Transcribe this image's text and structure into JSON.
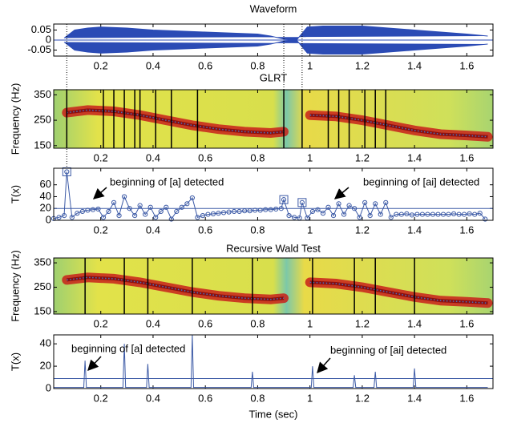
{
  "chart_data": [
    {
      "type": "waveform",
      "title": "Waveform",
      "color": "#2b4bb5",
      "x": [
        0.06,
        0.1,
        0.15,
        0.2,
        0.3,
        0.4,
        0.5,
        0.6,
        0.7,
        0.8,
        0.85,
        0.9,
        0.95,
        0.99,
        1.05,
        1.1,
        1.2,
        1.3,
        1.4,
        1.5,
        1.6,
        1.68
      ],
      "values": [
        0.01,
        0.05,
        0.06,
        0.065,
        0.06,
        0.05,
        0.045,
        0.04,
        0.035,
        0.03,
        0.02,
        0.005,
        0.002,
        0.065,
        0.07,
        0.07,
        0.07,
        0.06,
        0.05,
        0.04,
        0.03,
        0.02
      ],
      "markers_x": [
        0.07,
        0.9,
        0.97
      ],
      "xlim": [
        0.02,
        1.7
      ],
      "ylim": [
        -0.08,
        0.08
      ],
      "xticks": [
        0.2,
        0.4,
        0.6,
        0.8,
        1,
        1.2,
        1.4,
        1.6
      ],
      "yticks": [
        0.05,
        0,
        -0.05
      ]
    },
    {
      "type": "spectrogram",
      "title": "GLRT",
      "y_label": "Frequency (Hz)",
      "color": "#4a6fc0",
      "x": [
        0.07,
        0.15,
        0.25,
        0.35,
        0.45,
        0.55,
        0.65,
        0.75,
        0.85,
        0.9,
        0.95,
        1.0,
        1.1,
        1.2,
        1.3,
        1.4,
        1.5,
        1.6,
        1.68
      ],
      "values": [
        280,
        290,
        285,
        270,
        250,
        230,
        215,
        205,
        200,
        205,
        null,
        270,
        265,
        250,
        230,
        210,
        195,
        190,
        185
      ],
      "change_points": [
        0.07,
        0.21,
        0.25,
        0.29,
        0.33,
        0.35,
        0.41,
        0.47,
        0.57,
        0.9,
        0.97,
        1.07,
        1.11,
        1.15,
        1.21,
        1.25,
        1.29
      ],
      "xlim": [
        0.02,
        1.7
      ],
      "ylim": [
        140,
        370
      ],
      "xticks": [
        0.2,
        0.4,
        0.6,
        0.8,
        1,
        1.2,
        1.4,
        1.6
      ],
      "yticks": [
        150,
        250,
        350
      ]
    },
    {
      "type": "line",
      "y_label": "T(x)",
      "color": "#3c5aa6",
      "marker": "circle",
      "x": [
        0.02,
        0.04,
        0.06,
        0.07,
        0.09,
        0.11,
        0.13,
        0.15,
        0.17,
        0.19,
        0.21,
        0.23,
        0.25,
        0.27,
        0.29,
        0.31,
        0.33,
        0.35,
        0.37,
        0.39,
        0.41,
        0.43,
        0.45,
        0.47,
        0.49,
        0.51,
        0.53,
        0.55,
        0.57,
        0.59,
        0.61,
        0.63,
        0.65,
        0.67,
        0.69,
        0.71,
        0.73,
        0.75,
        0.77,
        0.79,
        0.81,
        0.83,
        0.85,
        0.87,
        0.89,
        0.9,
        0.92,
        0.94,
        0.96,
        0.97,
        0.99,
        1.01,
        1.03,
        1.05,
        1.07,
        1.09,
        1.11,
        1.13,
        1.15,
        1.17,
        1.19,
        1.21,
        1.23,
        1.25,
        1.27,
        1.29,
        1.31,
        1.33,
        1.35,
        1.37,
        1.39,
        1.41,
        1.43,
        1.45,
        1.47,
        1.49,
        1.51,
        1.53,
        1.55,
        1.57,
        1.59,
        1.61,
        1.63,
        1.65,
        1.67
      ],
      "values": [
        3,
        5,
        8,
        82,
        5,
        12,
        15,
        17,
        18,
        19,
        5,
        15,
        30,
        8,
        40,
        20,
        8,
        25,
        10,
        22,
        5,
        15,
        22,
        2,
        15,
        22,
        28,
        38,
        5,
        8,
        10,
        11,
        12,
        13,
        14,
        15,
        15,
        16,
        16,
        17,
        17,
        18,
        18,
        19,
        20,
        35,
        8,
        5,
        4,
        30,
        4,
        15,
        18,
        12,
        22,
        8,
        28,
        10,
        25,
        20,
        5,
        30,
        8,
        28,
        10,
        30,
        5,
        10,
        10,
        11,
        9,
        10,
        10,
        10,
        10,
        10,
        10,
        10,
        11,
        10,
        10,
        11,
        10,
        12,
        2
      ],
      "squares": {
        "x": [
          0.07,
          0.9,
          0.97
        ],
        "values": [
          82,
          35,
          30
        ]
      },
      "threshold": 20,
      "annotations": [
        "beginning of [a] detected",
        "beginning of [ai] detected"
      ],
      "xlim": [
        0.02,
        1.7
      ],
      "ylim": [
        0,
        88
      ],
      "xticks": [
        0.2,
        0.4,
        0.6,
        0.8,
        1,
        1.2,
        1.4,
        1.6
      ],
      "yticks": [
        0,
        20,
        40,
        60
      ]
    },
    {
      "type": "spectrogram",
      "title": "Recursive Wald Test",
      "y_label": "Frequency (Hz)",
      "color": "#4a6fc0",
      "x": [
        0.07,
        0.15,
        0.25,
        0.35,
        0.45,
        0.55,
        0.65,
        0.75,
        0.85,
        0.9,
        0.95,
        1.0,
        1.1,
        1.2,
        1.3,
        1.4,
        1.5,
        1.6,
        1.68
      ],
      "values": [
        280,
        290,
        285,
        270,
        250,
        230,
        215,
        205,
        200,
        205,
        null,
        270,
        265,
        250,
        230,
        210,
        195,
        190,
        185
      ],
      "change_points": [
        0.14,
        0.29,
        0.38,
        0.55,
        0.78,
        1.01,
        1.17,
        1.25,
        1.4
      ],
      "xlim": [
        0.02,
        1.7
      ],
      "ylim": [
        140,
        370
      ],
      "xticks": [
        0.2,
        0.4,
        0.6,
        0.8,
        1,
        1.2,
        1.4,
        1.6
      ],
      "yticks": [
        150,
        250,
        350
      ]
    },
    {
      "type": "line",
      "y_label": "T(x)",
      "x_label": "Time (sec)",
      "color": "#3c5aa6",
      "x": [
        0.02,
        0.135,
        0.14,
        0.145,
        0.285,
        0.29,
        0.295,
        0.375,
        0.38,
        0.385,
        0.545,
        0.55,
        0.555,
        0.775,
        0.78,
        0.785,
        1.005,
        1.01,
        1.015,
        1.165,
        1.17,
        1.175,
        1.245,
        1.25,
        1.255,
        1.395,
        1.4,
        1.405,
        1.68
      ],
      "values": [
        1,
        1,
        25,
        1,
        1,
        40,
        1,
        1,
        22,
        1,
        1,
        48,
        1,
        1,
        15,
        1,
        1,
        20,
        1,
        1,
        12,
        1,
        1,
        15,
        1,
        1,
        18,
        1,
        1
      ],
      "threshold": 9,
      "annotations": [
        "beginning of [a] detected",
        "beginning of [ai] detected"
      ],
      "xlim": [
        0.02,
        1.7
      ],
      "ylim": [
        0,
        48
      ],
      "xticks": [
        0.2,
        0.4,
        0.6,
        0.8,
        1,
        1.2,
        1.4,
        1.6
      ],
      "yticks": [
        0,
        20,
        40
      ]
    }
  ]
}
